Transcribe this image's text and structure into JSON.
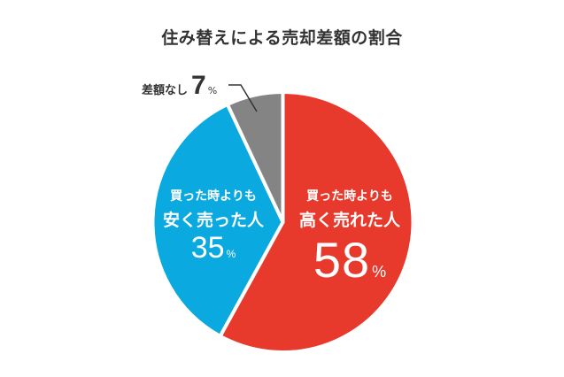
{
  "chart_data": {
    "type": "pie",
    "title": "住み替えによる売却差額の割合",
    "categories": [
      "買った時よりも高く売れた人",
      "買った時よりも安く売った人",
      "差額なし"
    ],
    "values": [
      58,
      35,
      7
    ],
    "unit": "%",
    "colors": [
      "#e8392d",
      "#0aa9e0",
      "#848484"
    ],
    "start_angle": "12 o'clock, clockwise",
    "legend": "inline labels"
  },
  "title": "住み替えによる売却差額の割合",
  "slices": {
    "red": {
      "line1": "買った時よりも",
      "line2": "高く売れた人",
      "value": "58",
      "unit": "%"
    },
    "blue": {
      "line1": "買った時よりも",
      "line2": "安く売った人",
      "value": "35",
      "unit": "%"
    },
    "gray": {
      "label": "差額なし",
      "value": "7",
      "unit": "%"
    }
  }
}
